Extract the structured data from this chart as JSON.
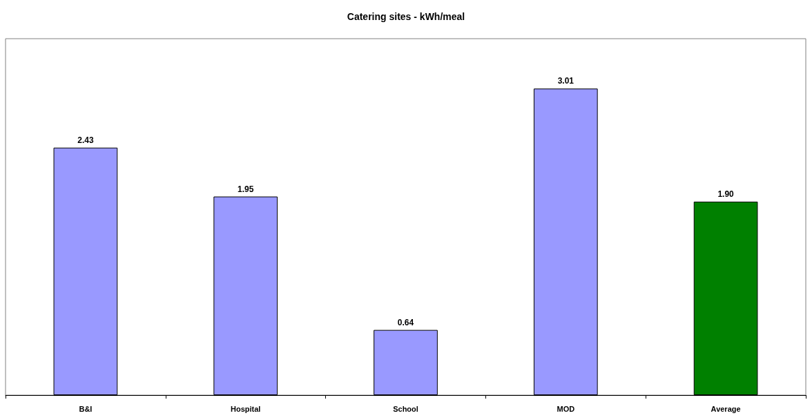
{
  "chart_data": {
    "type": "bar",
    "title": "Catering sites - kWh/meal",
    "categories": [
      "B&I",
      "Hospital",
      "School",
      "MOD",
      "Average"
    ],
    "values": [
      2.43,
      1.95,
      0.64,
      3.01,
      1.9
    ],
    "colors": [
      "#9999ff",
      "#9999ff",
      "#9999ff",
      "#9999ff",
      "#008000"
    ],
    "value_labels": [
      "2.43",
      "1.95",
      "0.64",
      "3.01",
      "1.90"
    ]
  }
}
